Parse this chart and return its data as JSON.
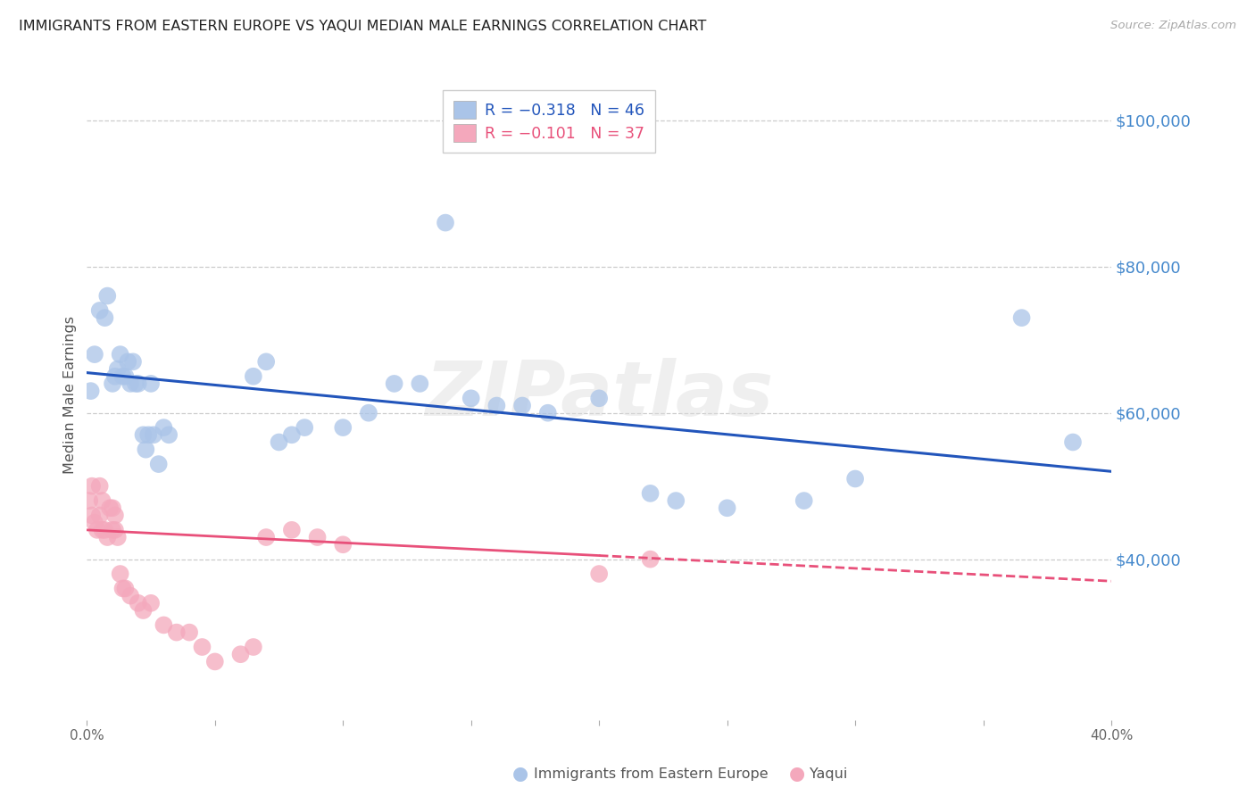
{
  "title": "IMMIGRANTS FROM EASTERN EUROPE VS YAQUI MEDIAN MALE EARNINGS CORRELATION CHART",
  "source": "Source: ZipAtlas.com",
  "ylabel": "Median Male Earnings",
  "y_tick_labels": [
    "$40,000",
    "$60,000",
    "$80,000",
    "$100,000"
  ],
  "y_tick_values": [
    40000,
    60000,
    80000,
    100000
  ],
  "legend_line1_r": "R = −0.318",
  "legend_line1_n": "N = 46",
  "legend_line2_r": "R = −0.101",
  "legend_line2_n": "N = 37",
  "blue_color": "#aac4e8",
  "pink_color": "#f4a8bc",
  "blue_line_color": "#2255bb",
  "pink_line_color": "#e8507a",
  "watermark": "ZIPatlas",
  "blue_scatter_x": [
    0.15,
    0.3,
    0.5,
    0.7,
    0.8,
    1.0,
    1.1,
    1.2,
    1.3,
    1.4,
    1.5,
    1.6,
    1.7,
    1.8,
    1.9,
    2.0,
    2.2,
    2.3,
    2.4,
    2.5,
    2.6,
    2.8,
    3.0,
    3.2,
    6.5,
    7.0,
    7.5,
    8.0,
    8.5,
    10.0,
    11.0,
    12.0,
    13.0,
    14.0,
    15.0,
    16.0,
    17.0,
    18.0,
    20.0,
    22.0,
    23.0,
    25.0,
    28.0,
    30.0,
    36.5,
    38.5
  ],
  "blue_scatter_y": [
    63000,
    68000,
    74000,
    73000,
    76000,
    64000,
    65000,
    66000,
    68000,
    65000,
    65000,
    67000,
    64000,
    67000,
    64000,
    64000,
    57000,
    55000,
    57000,
    64000,
    57000,
    53000,
    58000,
    57000,
    65000,
    67000,
    56000,
    57000,
    58000,
    58000,
    60000,
    64000,
    64000,
    86000,
    62000,
    61000,
    61000,
    60000,
    62000,
    49000,
    48000,
    47000,
    48000,
    51000,
    73000,
    56000
  ],
  "pink_scatter_x": [
    0.1,
    0.2,
    0.2,
    0.3,
    0.4,
    0.5,
    0.5,
    0.6,
    0.6,
    0.7,
    0.8,
    0.9,
    1.0,
    1.0,
    1.1,
    1.1,
    1.2,
    1.3,
    1.4,
    1.5,
    1.7,
    2.0,
    2.2,
    2.5,
    3.0,
    3.5,
    4.0,
    4.5,
    5.0,
    6.0,
    6.5,
    7.0,
    8.0,
    9.0,
    10.0,
    20.0,
    22.0
  ],
  "pink_scatter_y": [
    48000,
    46000,
    50000,
    45000,
    44000,
    46000,
    50000,
    44000,
    48000,
    44000,
    43000,
    47000,
    44000,
    47000,
    44000,
    46000,
    43000,
    38000,
    36000,
    36000,
    35000,
    34000,
    33000,
    34000,
    31000,
    30000,
    30000,
    28000,
    26000,
    27000,
    28000,
    43000,
    44000,
    43000,
    42000,
    38000,
    40000
  ],
  "blue_regr_x0": 0.0,
  "blue_regr_x1": 40.0,
  "blue_regr_y0": 65500,
  "blue_regr_y1": 52000,
  "pink_regr_x0": 0.0,
  "pink_regr_x1_solid": 20.0,
  "pink_regr_x1_dashed": 40.0,
  "pink_regr_y0": 44000,
  "pink_regr_y1_solid": 40500,
  "pink_regr_y1_dashed": 37000,
  "xlim": [
    0.0,
    40.0
  ],
  "ylim": [
    18000,
    107000
  ],
  "grid_color": "#cccccc",
  "background_color": "#ffffff",
  "title_fontsize": 11.5,
  "right_label_color": "#4488cc"
}
